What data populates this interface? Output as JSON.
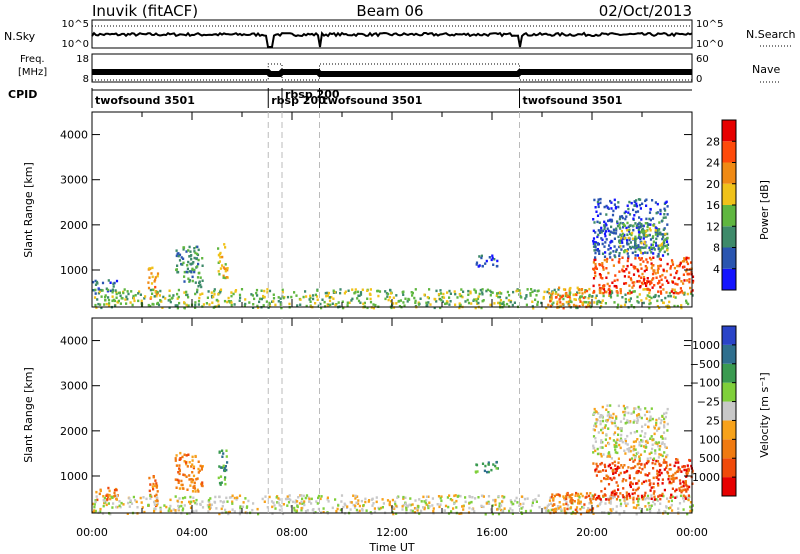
{
  "header": {
    "station": "Inuvik (fitACF)",
    "beam": "Beam 06",
    "date": "02/Oct/2013"
  },
  "strips": {
    "noise": {
      "left_label": "N.Sky",
      "left_ticks": [
        "10^5",
        "10^0"
      ],
      "right_label": "N.Search",
      "right_ticks": [
        "10^5",
        "10^0"
      ]
    },
    "freq": {
      "left_label_1": "Freq.",
      "left_label_2": "[MHz]",
      "left_ticks": [
        "18",
        "8"
      ],
      "right_label": "Nave",
      "right_ticks": [
        "60",
        "0"
      ]
    },
    "cpid": {
      "label": "CPID",
      "segments": [
        {
          "text": "twofsound 3501",
          "start_h": 0.0,
          "end_h": 7.05
        },
        {
          "text": "rbsp 200",
          "start_h": 7.05,
          "end_h": 7.6
        },
        {
          "text": "rbsp 200",
          "start_h": 7.6,
          "end_h": 9.1
        },
        {
          "text": "twofsound 3501",
          "start_h": 9.1,
          "end_h": 17.1
        },
        {
          "text": "twofsound 3501",
          "start_h": 17.1,
          "end_h": 24.0
        }
      ]
    }
  },
  "chart_data": [
    {
      "type": "heatmap",
      "title": "",
      "xlabel": "",
      "ylabel": "Slant Range [km]",
      "xlim": [
        0,
        24
      ],
      "ylim": [
        180,
        4500
      ],
      "yticks": [
        1000,
        2000,
        3000,
        4000
      ],
      "colorbar": {
        "label": "Power [dB]",
        "ticks": [
          "4",
          "8",
          "12",
          "16",
          "20",
          "24",
          "28"
        ],
        "colors": [
          "#1414ff",
          "#2a55b0",
          "#3e8a6a",
          "#5fb640",
          "#f0c21a",
          "#f08a14",
          "#ff4a0a",
          "#e60000"
        ]
      },
      "regions": [
        {
          "t0": 0.0,
          "t1": 1.0,
          "r0": 480,
          "r1": 800,
          "level": 1
        },
        {
          "t0": 2.2,
          "t1": 2.6,
          "r0": 350,
          "r1": 1100,
          "level": 5
        },
        {
          "t0": 3.3,
          "t1": 4.4,
          "r0": 650,
          "r1": 1550,
          "level": 2
        },
        {
          "t0": 5.0,
          "t1": 5.4,
          "r0": 800,
          "r1": 1600,
          "level": 4
        },
        {
          "t0": 0.0,
          "t1": 24.0,
          "r0": 180,
          "r1": 600,
          "level": 3
        },
        {
          "t0": 15.3,
          "t1": 16.2,
          "r0": 1100,
          "r1": 1350,
          "level": 1
        },
        {
          "t0": 18.2,
          "t1": 20.0,
          "r0": 180,
          "r1": 650,
          "level": 5
        },
        {
          "t0": 20.0,
          "t1": 24.0,
          "r0": 500,
          "r1": 1300,
          "level": 6
        },
        {
          "t0": 20.0,
          "t1": 23.0,
          "r0": 1300,
          "r1": 2600,
          "level": 1
        },
        {
          "t0": 21.0,
          "t1": 23.0,
          "r0": 1400,
          "r1": 2100,
          "level": 3
        }
      ]
    },
    {
      "type": "heatmap",
      "title": "",
      "xlabel": "Time UT",
      "ylabel": "Slant Range [km]",
      "xlim": [
        0,
        24
      ],
      "ylim": [
        180,
        4500
      ],
      "yticks": [
        1000,
        2000,
        3000,
        4000
      ],
      "xticks": [
        "00:00",
        "04:00",
        "08:00",
        "12:00",
        "16:00",
        "20:00",
        "00:00"
      ],
      "colorbar": {
        "label": "Velocity [m s⁻¹]",
        "ticks": [
          "1000",
          "500",
          "100",
          "25",
          "−25",
          "−100",
          "−500",
          "−1000"
        ],
        "colors": [
          "#2a44c8",
          "#2f6f8e",
          "#3a9a50",
          "#7fcf3a",
          "#c8c8c8",
          "#f7a21a",
          "#f07a10",
          "#f04a0a",
          "#e60000"
        ]
      },
      "regions": [
        {
          "t0": 0.0,
          "t1": 1.0,
          "r0": 480,
          "r1": 800,
          "level": 6
        },
        {
          "t0": 2.2,
          "t1": 2.6,
          "r0": 350,
          "r1": 1100,
          "level": 6
        },
        {
          "t0": 3.3,
          "t1": 4.4,
          "r0": 650,
          "r1": 1550,
          "level": 6
        },
        {
          "t0": 5.0,
          "t1": 5.4,
          "r0": 800,
          "r1": 1600,
          "level": 2
        },
        {
          "t0": 0.0,
          "t1": 24.0,
          "r0": 180,
          "r1": 600,
          "level": 4
        },
        {
          "t0": 15.3,
          "t1": 16.2,
          "r0": 1100,
          "r1": 1350,
          "level": 2
        },
        {
          "t0": 18.2,
          "t1": 20.0,
          "r0": 180,
          "r1": 650,
          "level": 6
        },
        {
          "t0": 20.0,
          "t1": 24.0,
          "r0": 500,
          "r1": 1400,
          "level": 7
        },
        {
          "t0": 20.0,
          "t1": 23.0,
          "r0": 1400,
          "r1": 2600,
          "level": 4
        }
      ]
    }
  ]
}
